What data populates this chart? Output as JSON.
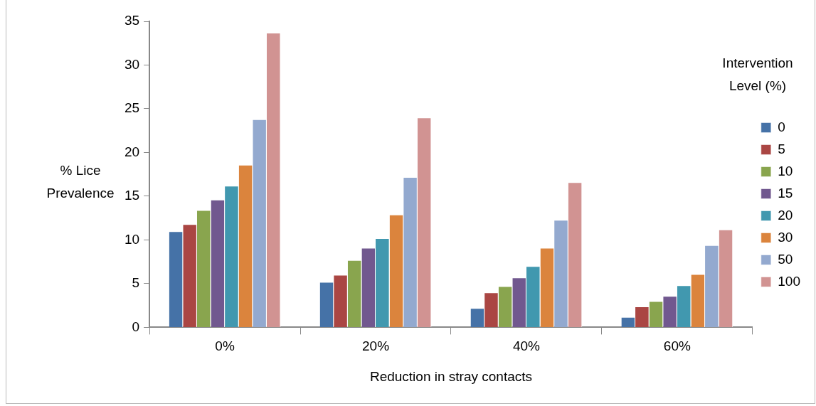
{
  "chart_data": {
    "type": "bar",
    "xlabel": "Reduction in stray contacts",
    "ylabel": "% Lice Prevalence",
    "legend_title": "Intervention Level (%)",
    "legend": "right",
    "grid": false,
    "categories": [
      "0%",
      "20%",
      "40%",
      "60%"
    ],
    "ylim": [
      0,
      35
    ],
    "yticks": [
      0,
      5,
      10,
      15,
      20,
      25,
      30,
      35
    ],
    "series": [
      {
        "name": "0",
        "color": "#4572a7",
        "values": [
          11.0,
          5.2,
          2.2,
          1.2
        ]
      },
      {
        "name": "5",
        "color": "#aa4643",
        "values": [
          11.8,
          6.0,
          4.0,
          2.4
        ]
      },
      {
        "name": "10",
        "color": "#89a54e",
        "values": [
          13.4,
          7.7,
          4.7,
          3.0
        ]
      },
      {
        "name": "15",
        "color": "#71588f",
        "values": [
          14.6,
          9.1,
          5.7,
          3.6
        ]
      },
      {
        "name": "20",
        "color": "#4198af",
        "values": [
          16.2,
          10.2,
          7.0,
          4.8
        ]
      },
      {
        "name": "30",
        "color": "#db843d",
        "values": [
          18.6,
          12.9,
          9.1,
          6.1
        ]
      },
      {
        "name": "50",
        "color": "#93a9cf",
        "values": [
          23.8,
          17.2,
          12.3,
          9.4
        ]
      },
      {
        "name": "100",
        "color": "#d19392",
        "values": [
          33.7,
          24.0,
          16.6,
          11.2
        ]
      }
    ]
  }
}
